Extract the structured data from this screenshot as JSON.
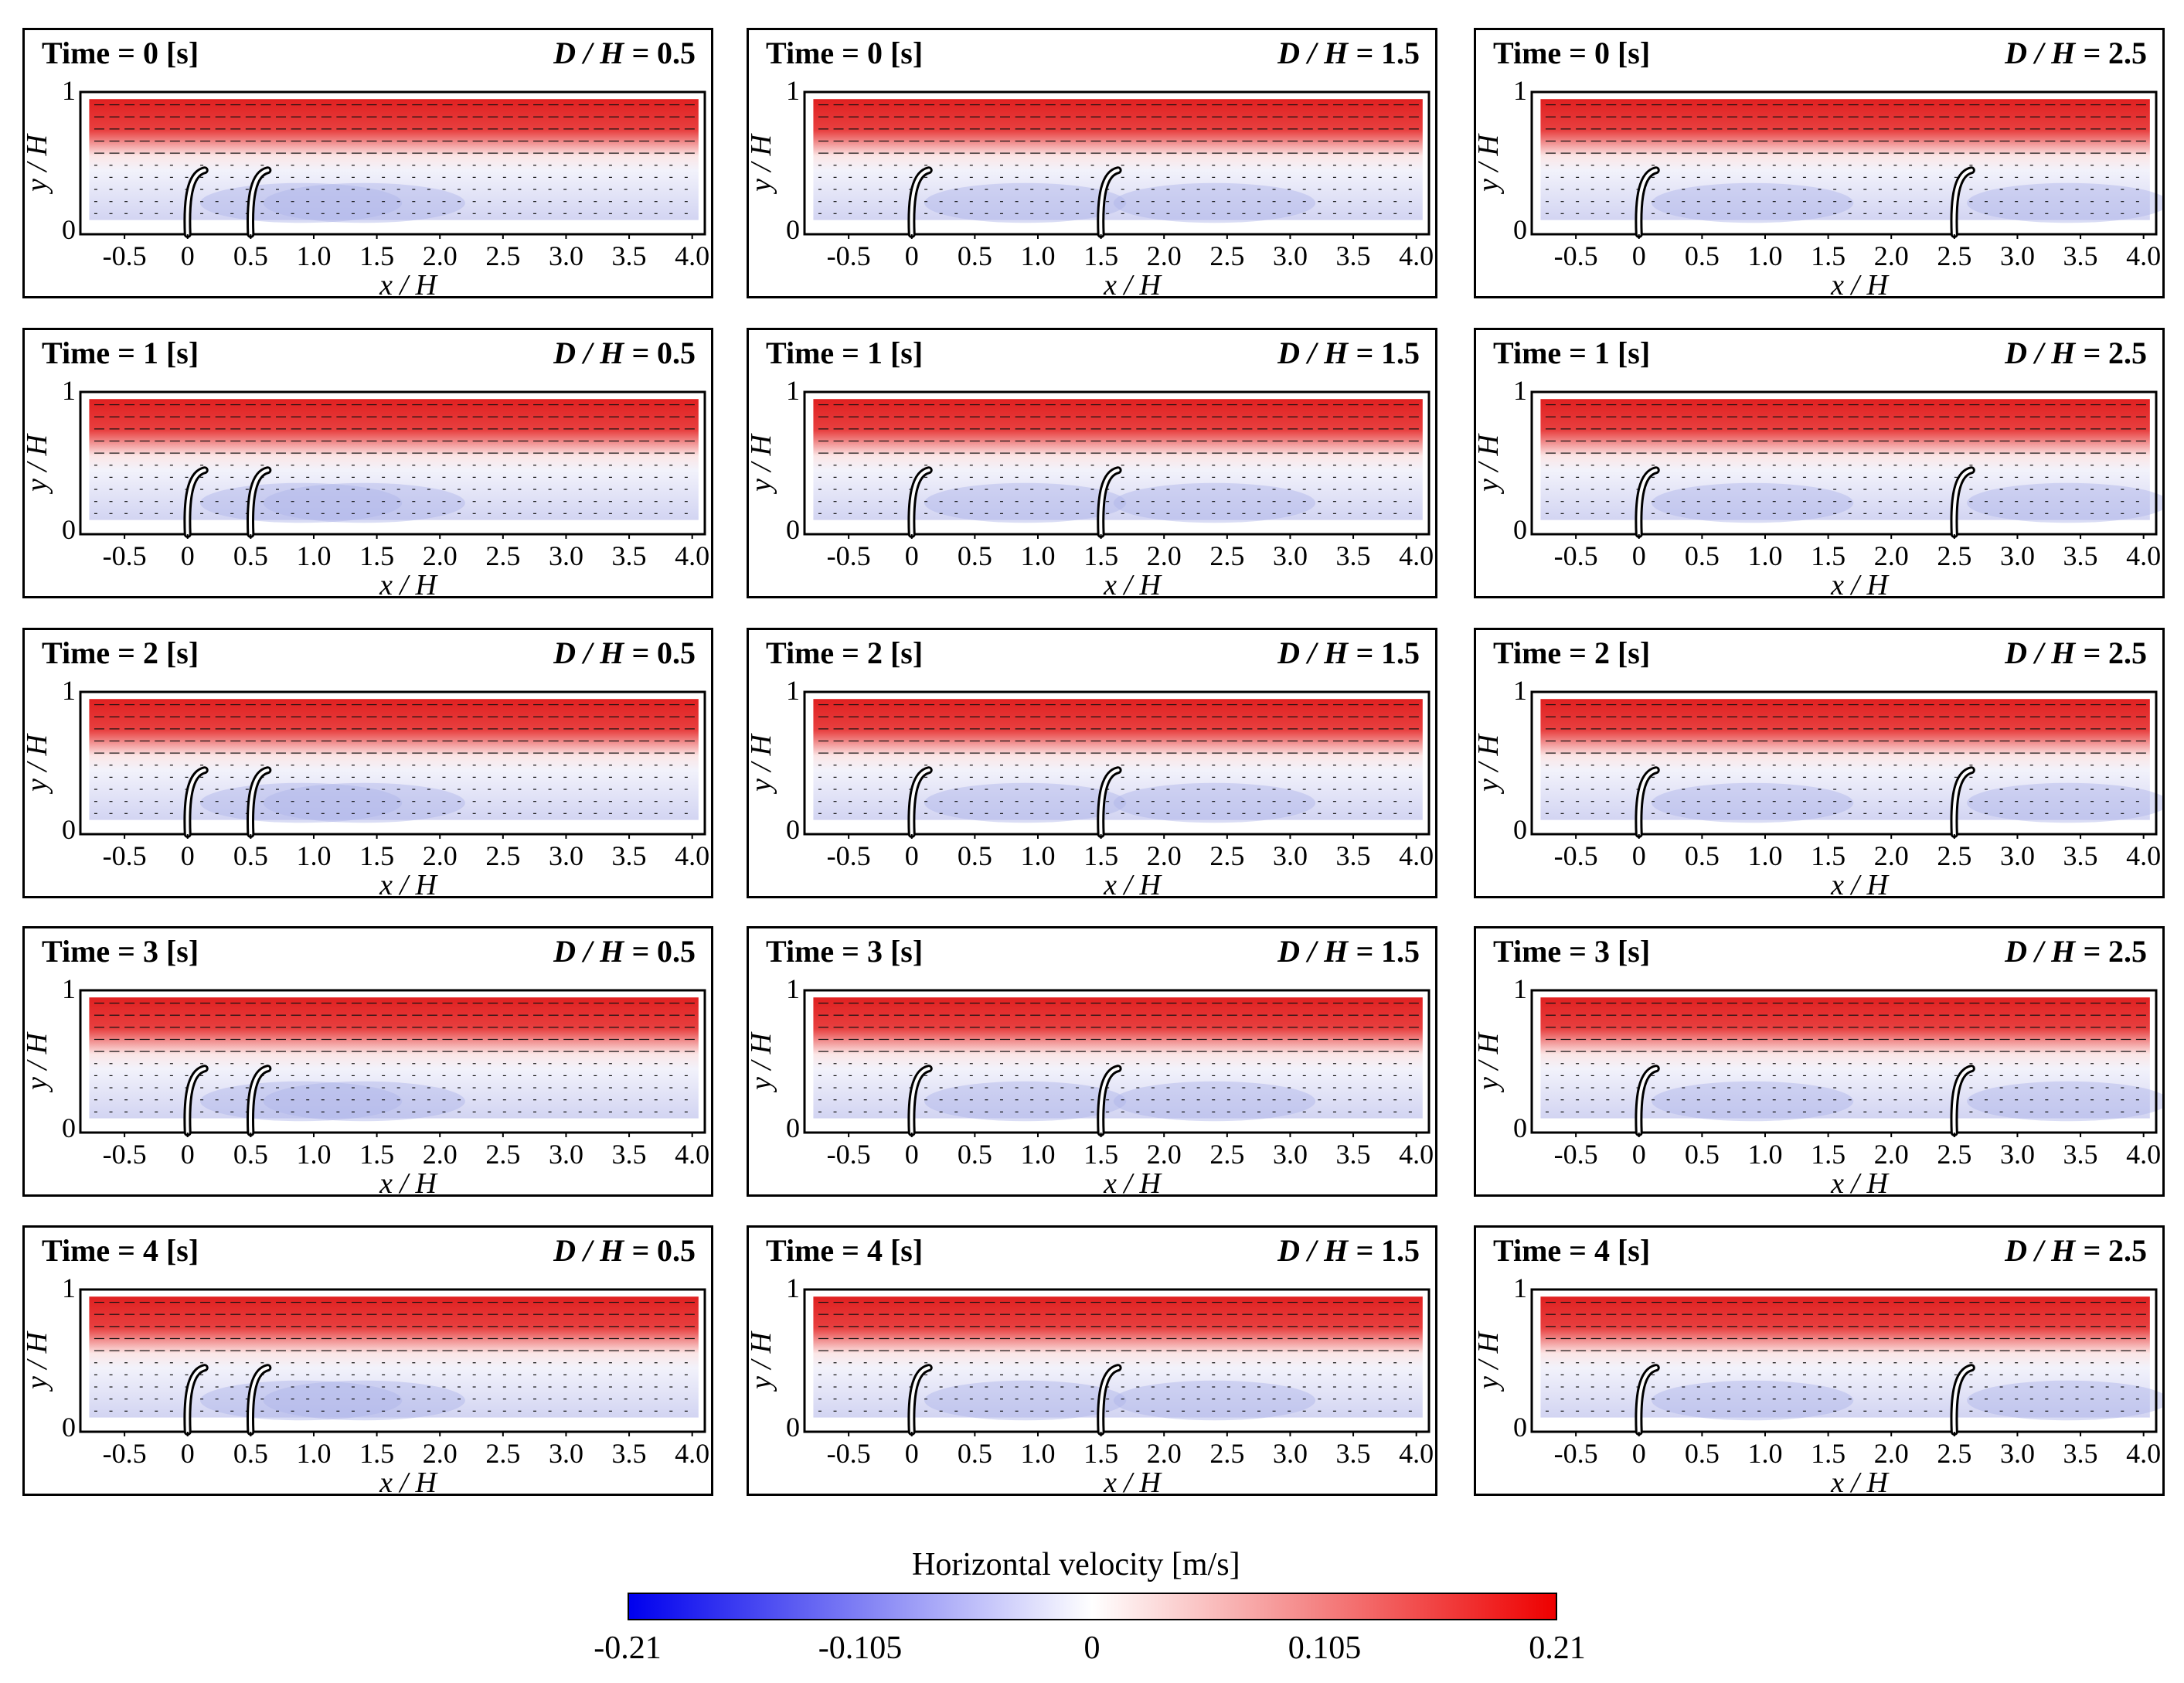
{
  "chart_data": {
    "type": "heatmap",
    "title": "",
    "variable": "Horizontal velocity",
    "xlabel": "x / H",
    "ylabel": "y / H",
    "xlim": [
      -0.85,
      4.1
    ],
    "ylim": [
      0,
      1
    ],
    "x_ticks": [
      "-0.5",
      "0",
      "0.5",
      "1.0",
      "1.5",
      "2.0",
      "2.5",
      "3.0",
      "3.5",
      "4.0"
    ],
    "y_ticks": [
      "0",
      "1"
    ],
    "rows": [
      "Time = 0 [s]",
      "Time = 1 [s]",
      "Time = 2 [s]",
      "Time = 3 [s]",
      "Time = 4 [s]"
    ],
    "time_values_s": [
      0,
      1,
      2,
      3,
      4
    ],
    "columns": [
      {
        "label": "D / H = ",
        "value_text": "0.5",
        "spacing_D_over_H": 0.5,
        "plant_positions_x_over_H": [
          0,
          0.5
        ]
      },
      {
        "label": "D / H = ",
        "value_text": "1.5",
        "spacing_D_over_H": 1.5,
        "plant_positions_x_over_H": [
          0,
          1.5
        ]
      },
      {
        "label": "D / H = ",
        "value_text": "2.5",
        "spacing_D_over_H": 2.5,
        "plant_positions_x_over_H": [
          0,
          2.5
        ]
      }
    ],
    "plant_height_y_over_H": 0.45,
    "field_extent_y_over_H": [
      0.1,
      0.95
    ],
    "shear_layer_y_over_H": 0.55,
    "colorbar": {
      "title": "Horizontal velocity [m/s]",
      "range": [
        -0.21,
        0.21
      ],
      "tick_labels": [
        "-0.21",
        "-0.105",
        "0",
        "0.105",
        "0.21"
      ],
      "colors": [
        "#0000ee",
        "#ffffff",
        "#ee0000"
      ]
    }
  }
}
